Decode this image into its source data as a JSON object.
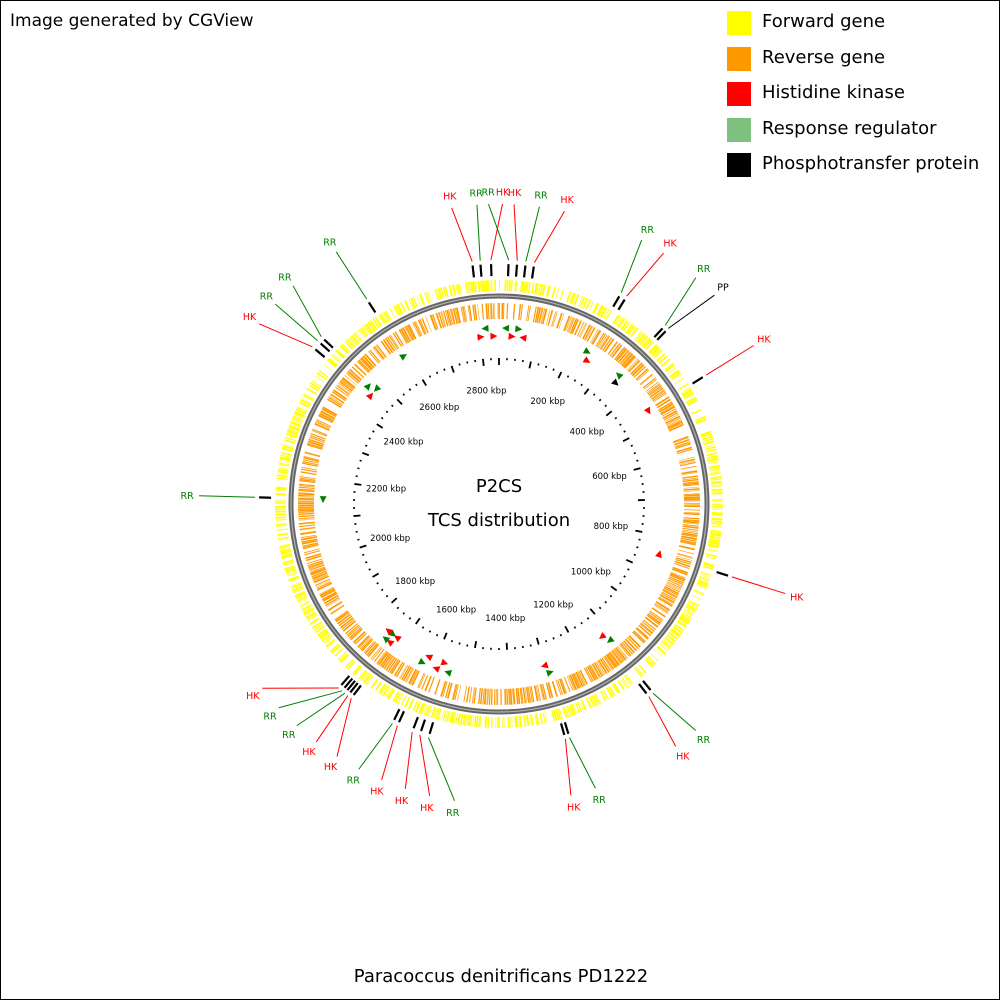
{
  "credit": "Image generated by CGView",
  "legend": [
    {
      "label": "Forward gene",
      "color": "#ffff00"
    },
    {
      "label": "Reverse gene",
      "color": "#ff9900"
    },
    {
      "label": "Histidine kinase",
      "color": "#ff0000"
    },
    {
      "label": "Response regulator",
      "color": "#80c080"
    },
    {
      "label": "Phosphotransfer protein",
      "color": "#000000"
    }
  ],
  "center": {
    "line1": "P2CS",
    "line2": "TCS distribution"
  },
  "organism": "Paracoccus denitrificans PD1222",
  "genome": {
    "length_kbp": 2850,
    "tick_labels": [
      {
        "kbp": 200,
        "label": "200 kbp"
      },
      {
        "kbp": 400,
        "label": "400 kbp"
      },
      {
        "kbp": 600,
        "label": "600 kbp"
      },
      {
        "kbp": 800,
        "label": "800 kbp"
      },
      {
        "kbp": 1000,
        "label": "1000 kbp"
      },
      {
        "kbp": 1200,
        "label": "1200 kbp"
      },
      {
        "kbp": 1400,
        "label": "1400 kbp"
      },
      {
        "kbp": 1600,
        "label": "1600 kbp"
      },
      {
        "kbp": 1800,
        "label": "1800 kbp"
      },
      {
        "kbp": 2000,
        "label": "2000 kbp"
      },
      {
        "kbp": 2200,
        "label": "2200 kbp"
      },
      {
        "kbp": 2400,
        "label": "2400 kbp"
      },
      {
        "kbp": 2600,
        "label": "2600 kbp"
      },
      {
        "kbp": 2800,
        "label": "2800 kbp"
      }
    ]
  },
  "tcs_genes": [
    {
      "label": "HK",
      "kbp": 2800,
      "type": "HK"
    },
    {
      "label": "RR",
      "kbp": 2815,
      "type": "RR"
    },
    {
      "label": "HK",
      "kbp": 2835,
      "type": "HK"
    },
    {
      "label": "RR",
      "kbp": 18,
      "type": "RR"
    },
    {
      "label": "HK",
      "kbp": 34,
      "type": "HK"
    },
    {
      "label": "RR",
      "kbp": 50,
      "type": "RR"
    },
    {
      "label": "HK",
      "kbp": 66,
      "type": "HK"
    },
    {
      "label": "RR",
      "kbp": 238,
      "type": "RR"
    },
    {
      "label": "HK",
      "kbp": 250,
      "type": "HK"
    },
    {
      "label": "RR",
      "kbp": 340,
      "type": "RR"
    },
    {
      "label": "PP",
      "kbp": 348,
      "type": "PP"
    },
    {
      "label": "HK",
      "kbp": 460,
      "type": "HK"
    },
    {
      "label": "HK",
      "kbp": 850,
      "type": "HK"
    },
    {
      "label": "RR",
      "kbp": 1115,
      "type": "RR"
    },
    {
      "label": "HK",
      "kbp": 1125,
      "type": "HK"
    },
    {
      "label": "RR",
      "kbp": 1292,
      "type": "RR"
    },
    {
      "label": "HK",
      "kbp": 1300,
      "type": "HK"
    },
    {
      "label": "RR",
      "kbp": 1558,
      "type": "RR"
    },
    {
      "label": "HK",
      "kbp": 1575,
      "type": "HK"
    },
    {
      "label": "HK",
      "kbp": 1590,
      "type": "HK"
    },
    {
      "label": "HK",
      "kbp": 1620,
      "type": "HK"
    },
    {
      "label": "RR",
      "kbp": 1630,
      "type": "RR"
    },
    {
      "label": "HK",
      "kbp": 1720,
      "type": "HK"
    },
    {
      "label": "HK",
      "kbp": 1728,
      "type": "HK"
    },
    {
      "label": "RR",
      "kbp": 1735,
      "type": "RR"
    },
    {
      "label": "RR",
      "kbp": 1742,
      "type": "RR"
    },
    {
      "label": "HK",
      "kbp": 1750,
      "type": "HK"
    },
    {
      "label": "RR",
      "kbp": 2150,
      "type": "RR"
    },
    {
      "label": "HK",
      "kbp": 2455,
      "type": "HK"
    },
    {
      "label": "RR",
      "kbp": 2470,
      "type": "RR"
    },
    {
      "label": "RR",
      "kbp": 2480,
      "type": "RR"
    },
    {
      "label": "RR",
      "kbp": 2590,
      "type": "RR"
    }
  ]
}
